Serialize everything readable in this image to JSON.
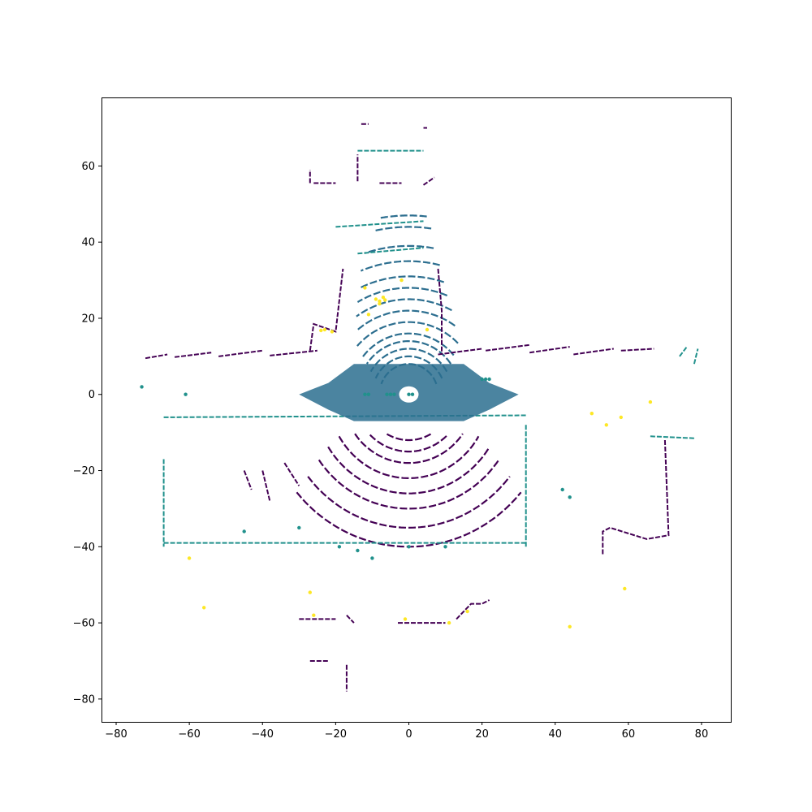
{
  "chart_data": {
    "type": "scatter",
    "title": "",
    "xlabel": "",
    "ylabel": "",
    "xlim": [
      -84,
      88
    ],
    "ylim": [
      -86,
      78
    ],
    "xticks": [
      -80,
      -60,
      -40,
      -20,
      0,
      20,
      40,
      60,
      80
    ],
    "yticks": [
      -80,
      -60,
      -40,
      -20,
      0,
      20,
      40,
      60
    ],
    "xtick_labels": [
      "−80",
      "−60",
      "−40",
      "−20",
      "0",
      "20",
      "40",
      "60",
      "80"
    ],
    "ytick_labels": [
      "−80",
      "−60",
      "−40",
      "−20",
      "0",
      "20",
      "40",
      "60"
    ],
    "grid": false,
    "colormap": [
      "#440154",
      "#3b528b",
      "#21918c",
      "#5ec962",
      "#fde725"
    ],
    "series": [
      {
        "color": "#2c6e8f",
        "description_kind": "concentric-arcs",
        "arcs": [
          {
            "cx": 0,
            "cy": 0,
            "r": 8,
            "a0": 20,
            "a1": 160
          },
          {
            "cx": 0,
            "cy": 0,
            "r": 10,
            "a0": 25,
            "a1": 155
          },
          {
            "cx": 0,
            "cy": 0,
            "r": 12,
            "a0": 30,
            "a1": 150
          },
          {
            "cx": 0,
            "cy": 0,
            "r": 14,
            "a0": 35,
            "a1": 145
          },
          {
            "cx": 0,
            "cy": 0,
            "r": 16,
            "a0": 40,
            "a1": 142
          },
          {
            "cx": 0,
            "cy": 0,
            "r": 19,
            "a0": 45,
            "a1": 138
          },
          {
            "cx": 0,
            "cy": 0,
            "r": 22,
            "a0": 55,
            "a1": 130
          },
          {
            "cx": 0,
            "cy": 0,
            "r": 25,
            "a0": 62,
            "a1": 125
          },
          {
            "cx": 0,
            "cy": 0,
            "r": 28,
            "a0": 68,
            "a1": 120
          },
          {
            "cx": 0,
            "cy": 0,
            "r": 31,
            "a0": 72,
            "a1": 115
          },
          {
            "cx": 0,
            "cy": 0,
            "r": 35,
            "a0": 76,
            "a1": 112
          },
          {
            "cx": 0,
            "cy": 0,
            "r": 39,
            "a0": 80,
            "a1": 108
          },
          {
            "cx": 0,
            "cy": 0,
            "r": 44,
            "a0": 82,
            "a1": 102
          },
          {
            "cx": 0,
            "cy": 0,
            "r": 47,
            "a0": 84,
            "a1": 100
          }
        ]
      },
      {
        "color": "#440154",
        "description_kind": "lower-arcs",
        "arcs": [
          {
            "cx": 0,
            "cy": 0,
            "r": 12,
            "a0": 240,
            "a1": 300
          },
          {
            "cx": 0,
            "cy": 0,
            "r": 15,
            "a0": 225,
            "a1": 315
          },
          {
            "cx": 0,
            "cy": 0,
            "r": 18,
            "a0": 215,
            "a1": 325
          },
          {
            "cx": 0,
            "cy": 0,
            "r": 22,
            "a0": 210,
            "a1": 330
          },
          {
            "cx": 0,
            "cy": 0,
            "r": 26,
            "a0": 212,
            "a1": 328
          },
          {
            "cx": 0,
            "cy": 0,
            "r": 30,
            "a0": 215,
            "a1": 325
          },
          {
            "cx": 0,
            "cy": 0,
            "r": 35,
            "a0": 218,
            "a1": 322
          },
          {
            "cx": 0,
            "cy": 0,
            "r": 40,
            "a0": 220,
            "a1": 320
          }
        ]
      },
      {
        "color": "#440154",
        "description_kind": "polylines",
        "lines": [
          [
            [
              -72,
              9.5
            ],
            [
              -66,
              10.5
            ]
          ],
          [
            [
              -64,
              9.8
            ],
            [
              -54,
              11.0
            ]
          ],
          [
            [
              -52,
              10.0
            ],
            [
              -40,
              11.5
            ]
          ],
          [
            [
              -38,
              10.2
            ],
            [
              -25,
              11.5
            ]
          ],
          [
            [
              -27,
              11.5
            ],
            [
              -26,
              18.5
            ],
            [
              -20,
              16.5
            ],
            [
              -18,
              33.0
            ]
          ],
          [
            [
              8,
              33.0
            ],
            [
              9,
              22.0
            ],
            [
              9,
              10.5
            ]
          ],
          [
            [
              8,
              10.5
            ],
            [
              20,
              12.0
            ]
          ],
          [
            [
              21,
              11.5
            ],
            [
              33,
              13.0
            ]
          ],
          [
            [
              33,
              11.0
            ],
            [
              44,
              12.5
            ]
          ],
          [
            [
              45,
              10.5
            ],
            [
              56,
              12.0
            ]
          ],
          [
            [
              58,
              11.5
            ],
            [
              67,
              12.0
            ]
          ],
          [
            [
              -27,
              55.5
            ],
            [
              -27,
              59.0
            ]
          ],
          [
            [
              -26,
              55.5
            ],
            [
              -20,
              55.5
            ]
          ],
          [
            [
              -14,
              56
            ],
            [
              -14,
              63
            ]
          ],
          [
            [
              -8,
              55.5
            ],
            [
              -2,
              55.5
            ]
          ],
          [
            [
              4,
              55
            ],
            [
              7,
              57
            ]
          ],
          [
            [
              -13,
              71
            ],
            [
              -11,
              71
            ]
          ],
          [
            [
              4,
              70
            ],
            [
              5,
              70
            ]
          ],
          [
            [
              70,
              -12
            ],
            [
              71,
              -37
            ],
            [
              65,
              -38
            ],
            [
              55,
              -35
            ],
            [
              53,
              -36
            ],
            [
              53,
              -42
            ]
          ],
          [
            [
              -30,
              -59
            ],
            [
              -20,
              -59
            ]
          ],
          [
            [
              -17,
              -58
            ],
            [
              -15,
              -60
            ]
          ],
          [
            [
              -3,
              -60
            ],
            [
              10,
              -60
            ]
          ],
          [
            [
              13,
              -59
            ],
            [
              17,
              -55
            ],
            [
              20,
              -55
            ],
            [
              22,
              -54
            ]
          ],
          [
            [
              -27,
              -70
            ],
            [
              -22,
              -70
            ]
          ],
          [
            [
              -17,
              -71
            ],
            [
              -17,
              -78
            ]
          ],
          [
            [
              -45,
              -20
            ],
            [
              -43,
              -25
            ]
          ],
          [
            [
              -40,
              -20
            ],
            [
              -38,
              -28
            ]
          ],
          [
            [
              -34,
              -18
            ],
            [
              -30,
              -24
            ]
          ]
        ]
      },
      {
        "color": "#21918c",
        "description_kind": "polylines",
        "lines": [
          [
            [
              -67,
              -6
            ],
            [
              32,
              -5.5
            ]
          ],
          [
            [
              -67,
              -39
            ],
            [
              32,
              -39
            ]
          ],
          [
            [
              -67,
              -17
            ],
            [
              -67,
              -40
            ]
          ],
          [
            [
              32,
              -8
            ],
            [
              32,
              -40
            ]
          ],
          [
            [
              -14,
              64
            ],
            [
              4,
              64
            ]
          ],
          [
            [
              -20,
              44
            ],
            [
              4,
              45.5
            ]
          ],
          [
            [
              -14,
              37
            ],
            [
              4,
              38.5
            ]
          ],
          [
            [
              66,
              -11
            ],
            [
              78,
              -11.5
            ]
          ],
          [
            [
              74,
              10
            ],
            [
              76,
              12.5
            ]
          ],
          [
            [
              78,
              8
            ],
            [
              79,
              12
            ]
          ]
        ]
      },
      {
        "color": "#2c6e8f",
        "description_kind": "filled-region",
        "polygon": [
          [
            -15,
            8
          ],
          [
            15,
            8
          ],
          [
            22,
            3
          ],
          [
            30,
            0
          ],
          [
            22,
            -4
          ],
          [
            15,
            -7
          ],
          [
            -15,
            -7
          ],
          [
            -22,
            -4
          ],
          [
            -30,
            0
          ],
          [
            -22,
            3
          ]
        ]
      },
      {
        "color": "#fde725",
        "description_kind": "points",
        "points": [
          [
            -8,
            24.5
          ],
          [
            -7,
            25.5
          ],
          [
            -9,
            25
          ],
          [
            -8,
            23.8
          ],
          [
            -6.5,
            24.8
          ],
          [
            -23,
            17
          ],
          [
            -21,
            16.5
          ],
          [
            -24,
            16.8
          ],
          [
            -12,
            28
          ],
          [
            -2,
            30
          ],
          [
            -11,
            21
          ],
          [
            5,
            17
          ],
          [
            50,
            -5
          ],
          [
            54,
            -8
          ],
          [
            58,
            -6
          ],
          [
            66,
            -2
          ],
          [
            -60,
            -43
          ],
          [
            -27,
            -52
          ],
          [
            -26,
            -58
          ],
          [
            -1,
            -59
          ],
          [
            44,
            -61
          ],
          [
            59,
            -51
          ],
          [
            -56,
            -56
          ],
          [
            11,
            -60
          ],
          [
            16,
            -57
          ]
        ]
      },
      {
        "color": "#21918c",
        "description_kind": "points",
        "points": [
          [
            -12,
            0
          ],
          [
            -11,
            0
          ],
          [
            -6,
            0
          ],
          [
            -5,
            0
          ],
          [
            -4,
            0
          ],
          [
            0,
            0
          ],
          [
            1,
            0
          ],
          [
            20,
            4
          ],
          [
            21,
            4
          ],
          [
            22,
            4
          ],
          [
            42,
            -25
          ],
          [
            44,
            -27
          ],
          [
            -73,
            2
          ],
          [
            -61,
            0
          ],
          [
            -45,
            -36
          ],
          [
            -30,
            -35
          ],
          [
            -19,
            -40
          ],
          [
            -14,
            -41
          ],
          [
            -10,
            -43
          ],
          [
            0,
            -40
          ],
          [
            10,
            -40
          ]
        ]
      }
    ]
  }
}
